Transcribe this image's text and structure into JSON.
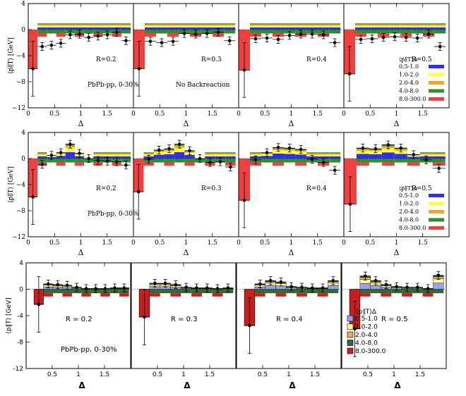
{
  "colors": {
    "bins": [
      "#2f2ff0",
      "#ffff4a",
      "#f5a623",
      "#2f8f2f",
      "#f04040"
    ],
    "bins_light": [
      "#9e9ef2",
      "#ffff99",
      "#f5a35a",
      "#2e6b2e",
      "#c81e1e"
    ]
  },
  "chart_data": [
    {
      "type": "bar",
      "row_label": "top",
      "ylabel": "⟨p̸∥T⟩ [GeV]",
      "xlabel": "Δ",
      "xlim": [
        0,
        2
      ],
      "ylim": [
        -12,
        4
      ],
      "yticks": [
        "4",
        "0",
        "−4",
        "−8",
        "−12"
      ],
      "xticks": [
        "0",
        "0.5",
        "1",
        "1.5"
      ],
      "bins": [
        "0.5-1.0",
        "1.0-2.0",
        "2.0-4.0",
        "4.0-8.0",
        "8.0-300.0"
      ],
      "legend_title": "⟨p̸∥T⟩Δ",
      "annotations": [
        "PbPb-pp, 0-30%",
        "No Backreaction"
      ],
      "panels": [
        {
          "label": "R=0.2",
          "points": [
            -6.0,
            -2.6,
            -2.4,
            -2.1,
            -0.8,
            -0.7,
            -1.2,
            -1.0,
            -0.8,
            -0.4,
            -1.7
          ]
        },
        {
          "label": "R=0.3",
          "points": [
            -6.0,
            -1.8,
            -2.0,
            -1.8,
            -0.6,
            -0.7,
            -0.6,
            -0.4,
            -1.7
          ]
        },
        {
          "label": "R=0.4",
          "points": [
            -6.2,
            -1.4,
            -1.3,
            -1.5,
            -0.9,
            -0.7,
            -0.7,
            -0.8,
            -2.0
          ]
        },
        {
          "label": "R=0.5",
          "points": [
            -6.8,
            -1.5,
            -1.4,
            -1.2,
            -1.1,
            -1.2,
            -1.3,
            -0.7,
            -2.6
          ]
        }
      ]
    },
    {
      "type": "bar",
      "row_label": "middle",
      "ylabel": "⟨p̸∥T⟩ [GeV]",
      "xlabel": "Δ",
      "xlim": [
        0,
        2
      ],
      "ylim": [
        -12,
        4
      ],
      "yticks": [
        "4",
        "0",
        "−4",
        "−8",
        "−12"
      ],
      "xticks": [
        "0",
        "0.5",
        "1",
        "1.5"
      ],
      "bins": [
        "0.5-1.0",
        "1.0-2.0",
        "2.0-4.0",
        "4.0-8.0",
        "8.0-300.0"
      ],
      "legend_title": "⟨p̸∥T⟩Δ",
      "annotations": [
        "PbPb-pp, 0-30%"
      ],
      "panels": [
        {
          "label": "R=0.2",
          "points": [
            -5.9,
            -0.9,
            0.5,
            0.9,
            2.2,
            0.8,
            0.0,
            -0.3,
            -0.4,
            -0.5,
            -1.0
          ]
        },
        {
          "label": "R=0.3",
          "points": [
            -5.1,
            -0.1,
            1.3,
            1.5,
            2.2,
            1.2,
            0.0,
            -0.6,
            -0.5,
            -1.3
          ]
        },
        {
          "label": "R=0.4",
          "points": [
            -6.4,
            -0.2,
            0.9,
            1.7,
            1.6,
            1.4,
            -0.1,
            -0.6,
            -1.8
          ]
        },
        {
          "label": "R=0.5",
          "points": [
            -7.0,
            1.6,
            1.5,
            2.1,
            1.6,
            0.6,
            -0.2,
            -1.5
          ]
        }
      ]
    },
    {
      "type": "bar",
      "row_label": "bottom",
      "ylabel": "⟨p∥T⟩ [GeV]",
      "xlabel": "Δ",
      "xlim": [
        0,
        2
      ],
      "ylim": [
        -12,
        4
      ],
      "yticks": [
        "4",
        "0",
        "-4",
        "-8",
        "-12"
      ],
      "xticks": [
        "0.5",
        "1",
        "1.5"
      ],
      "bins": [
        "0.5-1.0",
        "1.0-2.0",
        "2.0-4.0",
        "4.0-8.0",
        "8.0-300.0"
      ],
      "legend_title": "⟨p∥T⟩Δ",
      "annotations": [
        "PbPb-pp, 0-30%"
      ],
      "panels": [
        {
          "label": "R = 0.2",
          "points": [
            -2.3,
            0.8,
            0.7,
            0.6,
            0.3,
            0.1,
            0.1,
            0.1,
            0.2,
            0.2
          ]
        },
        {
          "label": "R = 0.3",
          "points": [
            -4.2,
            0.9,
            0.9,
            0.7,
            0.3,
            0.2,
            0.2,
            0.1,
            0.2
          ]
        },
        {
          "label": "R = 0.4",
          "points": [
            -5.5,
            0.8,
            1.3,
            1.1,
            0.4,
            0.3,
            0.2,
            0.2,
            1.3
          ]
        },
        {
          "label": "R = 0.5",
          "points": [
            -6.0,
            2.0,
            1.3,
            0.7,
            0.4,
            0.3,
            0.3,
            0.1,
            2.1
          ]
        }
      ]
    }
  ]
}
